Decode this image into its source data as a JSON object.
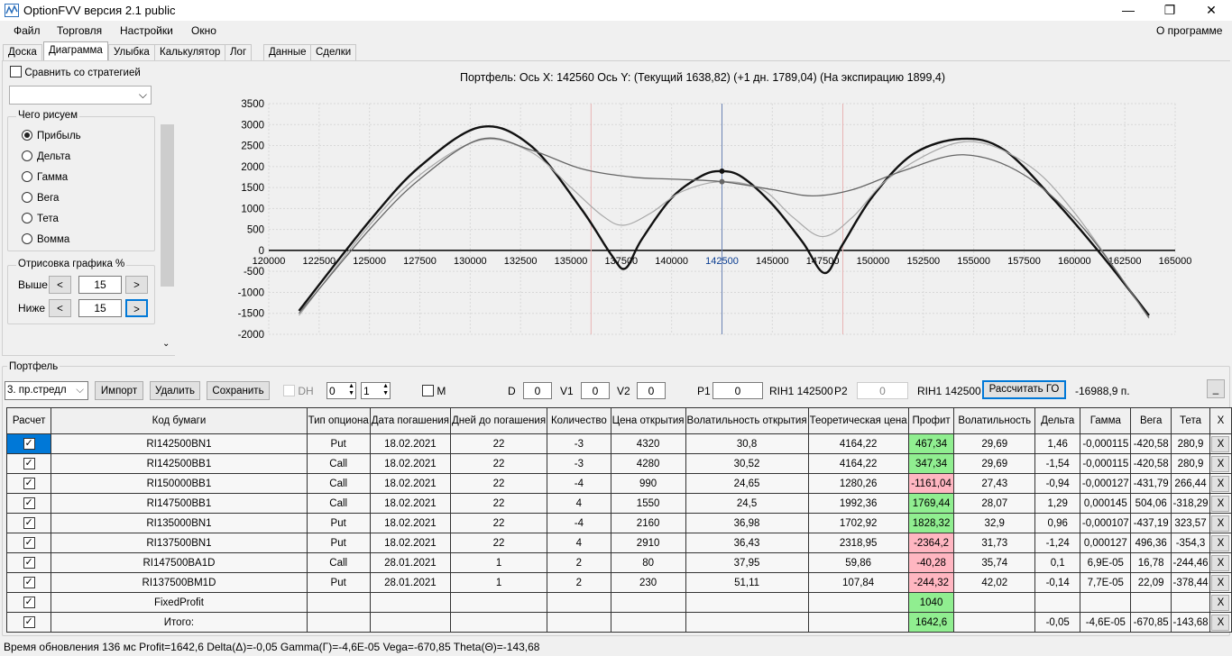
{
  "window": {
    "title": "OptionFVV версия 2.1 public",
    "minimize": "—",
    "maximize": "❐",
    "close": "✕"
  },
  "menu": {
    "items": [
      "Файл",
      "Торговля",
      "Настройки",
      "Окно"
    ],
    "about": "О программе"
  },
  "tabs": [
    "Доска",
    "Диаграмма",
    "Улыбка",
    "Калькулятор",
    "Лог",
    "Данные",
    "Сделки"
  ],
  "active_tab": "Диаграмма",
  "left": {
    "compare_label": "Сравнить со стратегией",
    "compare_checked": false,
    "strategy_value": "",
    "draw_group": "Чего рисуем",
    "options": [
      "Прибыль",
      "Дельта",
      "Гамма",
      "Вега",
      "Тета",
      "Вомма"
    ],
    "selected": "Прибыль",
    "range_group": "Отрисовка графика %",
    "above_label": "Выше",
    "above_value": "15",
    "below_label": "Ниже",
    "below_value": "15",
    "dec": "<",
    "inc": ">"
  },
  "chart": {
    "header": "Портфель: Ось X: 142560 Ось Y:  (Текущий 1638,82)  (+1 дн. 1789,04)  (На экспирацию 1899,4)"
  },
  "chart_data": {
    "type": "line",
    "xlim": [
      120000,
      165000
    ],
    "ylim": [
      -2000,
      3500
    ],
    "xticks": [
      120000,
      122500,
      125000,
      127500,
      130000,
      132500,
      135000,
      137500,
      140000,
      142500,
      145000,
      147500,
      150000,
      152500,
      155000,
      157500,
      160000,
      162500,
      165000
    ],
    "yticks": [
      3500,
      3000,
      2500,
      2000,
      1500,
      1000,
      500,
      0,
      -500,
      -1000,
      -1500,
      -2000
    ],
    "grid": true,
    "vlines": [
      {
        "x": 136000,
        "color": "#e8b4b4"
      },
      {
        "x": 142500,
        "color": "#6a82b4"
      },
      {
        "x": 148500,
        "color": "#e8b4b4"
      }
    ],
    "series": [
      {
        "color": "#111111",
        "width": 2.4,
        "points": [
          [
            121500,
            -1440
          ],
          [
            125000,
            700
          ],
          [
            127500,
            2000
          ],
          [
            130500,
            2940
          ],
          [
            133000,
            2500
          ],
          [
            135500,
            1000
          ],
          [
            137000,
            -100
          ],
          [
            137700,
            -430
          ],
          [
            138500,
            250
          ],
          [
            140000,
            1250
          ],
          [
            141500,
            1780
          ],
          [
            142500,
            1890
          ],
          [
            143500,
            1750
          ],
          [
            145000,
            1100
          ],
          [
            146500,
            200
          ],
          [
            147600,
            -540
          ],
          [
            148500,
            150
          ],
          [
            150000,
            1300
          ],
          [
            152000,
            2300
          ],
          [
            154400,
            2660
          ],
          [
            156500,
            2400
          ],
          [
            159000,
            1200
          ],
          [
            161500,
            -200
          ],
          [
            163700,
            -1550
          ]
        ],
        "marker": [
          142500,
          1890
        ]
      },
      {
        "color": "#a8a8a8",
        "width": 1.2,
        "points": [
          [
            121500,
            -1550
          ],
          [
            125000,
            600
          ],
          [
            127500,
            1800
          ],
          [
            130500,
            2630
          ],
          [
            133000,
            2350
          ],
          [
            135000,
            1500
          ],
          [
            136500,
            850
          ],
          [
            137600,
            600
          ],
          [
            139000,
            900
          ],
          [
            140500,
            1400
          ],
          [
            142500,
            1640
          ],
          [
            144500,
            1450
          ],
          [
            146000,
            800
          ],
          [
            147500,
            330
          ],
          [
            149000,
            800
          ],
          [
            151000,
            1800
          ],
          [
            154500,
            2590
          ],
          [
            157500,
            2100
          ],
          [
            160000,
            900
          ],
          [
            163700,
            -1620
          ]
        ]
      },
      {
        "color": "#666666",
        "width": 1.3,
        "points": [
          [
            121500,
            -1500
          ],
          [
            125000,
            500
          ],
          [
            127500,
            1700
          ],
          [
            130500,
            2650
          ],
          [
            133000,
            2400
          ],
          [
            135500,
            1950
          ],
          [
            138000,
            1750
          ],
          [
            140000,
            1700
          ],
          [
            142500,
            1640
          ],
          [
            145000,
            1450
          ],
          [
            147000,
            1300
          ],
          [
            149000,
            1450
          ],
          [
            151500,
            1900
          ],
          [
            154500,
            2280
          ],
          [
            157500,
            1800
          ],
          [
            160500,
            500
          ],
          [
            163700,
            -1600
          ]
        ],
        "marker": [
          142500,
          1640
        ]
      }
    ]
  },
  "portfolio": {
    "group": "Портфель",
    "strategy": "3. пр.стредл",
    "import": "Импорт",
    "delete": "Удалить",
    "save": "Сохранить",
    "dh": "DH",
    "spin1": "0",
    "spin2": "1",
    "m": "M",
    "d_label": "D",
    "d": "0",
    "v1_label": "V1",
    "v1": "0",
    "v2_label": "V2",
    "v2": "0",
    "p1_label": "P1",
    "p1": "0",
    "p1_sec": "RIH1 142500",
    "p2_label": "P2",
    "p2": "0",
    "p2_sec": "RIH1 142500",
    "calc_go": "Рассчитать ГО",
    "go_value": "-16988,9 п.",
    "collapse": "_"
  },
  "table": {
    "headers": [
      "Расчет",
      "Код бумаги",
      "Тип опциона",
      "Дата погашения",
      "Дней до погашения",
      "Количество",
      "Цена открытия",
      "Волатильность открытия",
      "Теоретическая цена",
      "Профит",
      "Волатильность",
      "Дельта",
      "Гамма",
      "Вега",
      "Тета",
      "X"
    ],
    "rows": [
      [
        "✓",
        "RI142500BN1",
        "Put",
        "18.02.2021",
        "22",
        "-3",
        "4320",
        "30,8",
        "4164,22",
        "467,34",
        "29,69",
        "1,46",
        "-0,000115",
        "-420,58",
        "280,9",
        "X"
      ],
      [
        "✓",
        "RI142500BB1",
        "Call",
        "18.02.2021",
        "22",
        "-3",
        "4280",
        "30,52",
        "4164,22",
        "347,34",
        "29,69",
        "-1,54",
        "-0,000115",
        "-420,58",
        "280,9",
        "X"
      ],
      [
        "✓",
        "RI150000BB1",
        "Call",
        "18.02.2021",
        "22",
        "-4",
        "990",
        "24,65",
        "1280,26",
        "-1161,04",
        "27,43",
        "-0,94",
        "-0,000127",
        "-431,79",
        "266,44",
        "X"
      ],
      [
        "✓",
        "RI147500BB1",
        "Call",
        "18.02.2021",
        "22",
        "4",
        "1550",
        "24,5",
        "1992,36",
        "1769,44",
        "28,07",
        "1,29",
        "0,000145",
        "504,06",
        "-318,29",
        "X"
      ],
      [
        "✓",
        "RI135000BN1",
        "Put",
        "18.02.2021",
        "22",
        "-4",
        "2160",
        "36,98",
        "1702,92",
        "1828,32",
        "32,9",
        "0,96",
        "-0,000107",
        "-437,19",
        "323,57",
        "X"
      ],
      [
        "✓",
        "RI137500BN1",
        "Put",
        "18.02.2021",
        "22",
        "4",
        "2910",
        "36,43",
        "2318,95",
        "-2364,2",
        "31,73",
        "-1,24",
        "0,000127",
        "496,36",
        "-354,3",
        "X"
      ],
      [
        "✓",
        "RI147500BA1D",
        "Call",
        "28.01.2021",
        "1",
        "2",
        "80",
        "37,95",
        "59,86",
        "-40,28",
        "35,74",
        "0,1",
        "6,9E-05",
        "16,78",
        "-244,46",
        "X"
      ],
      [
        "✓",
        "RI137500BM1D",
        "Put",
        "28.01.2021",
        "1",
        "2",
        "230",
        "51,11",
        "107,84",
        "-244,32",
        "42,02",
        "-0,14",
        "7,7E-05",
        "22,09",
        "-378,44",
        "X"
      ],
      [
        "✓",
        "FixedProfit",
        "",
        "",
        "",
        "",
        "",
        "",
        "",
        "1040",
        "",
        "",
        "",
        "",
        "",
        "X"
      ],
      [
        "✓",
        "Итого:",
        "",
        "",
        "",
        "",
        "",
        "",
        "",
        "1642,6",
        "",
        "-0,05",
        "-4,6E-05",
        "-670,85",
        "-143,68",
        "X"
      ]
    ]
  },
  "status": "Время обновления 136 мс  Profit=1642,6 Delta(Δ)=-0,05 Gamma(Γ)=-4,6E-05 Vega=-670,85 Theta(Θ)=-143,68"
}
